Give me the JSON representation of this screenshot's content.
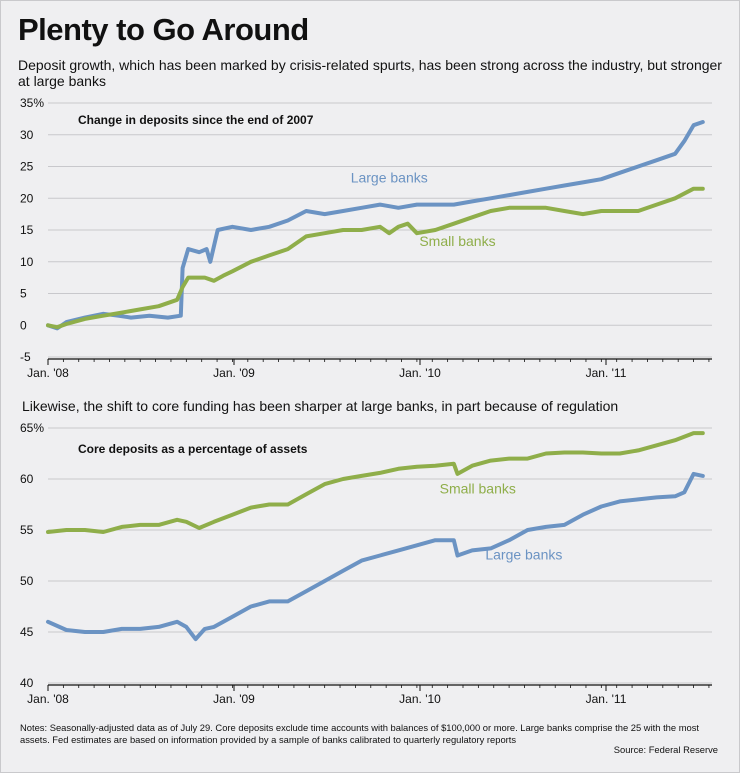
{
  "title": "Plenty to Go Around",
  "subtitle": "Deposit growth, which has been marked by crisis-related spurts, has been strong across the industry, but stronger at large banks",
  "mid_subtitle": "Likewise, the shift to core funding has been sharper at large banks, in part because of regulation",
  "notes": "Notes: Seasonally-adjusted data as of July 29. Core deposits exclude time accounts with balances of $100,000 or more. Large banks comprise the 25 with the most assets. Fed estimates are based on information provided by a sample of banks calibrated to quarterly regulatory reports",
  "source": "Source: Federal Reserve",
  "colors": {
    "large": "#6b93c3",
    "small": "#8fae4a"
  },
  "chart_data": [
    {
      "type": "line",
      "title": "Change in deposits since the end of 2007",
      "x_ticks": [
        "Jan. '08",
        "Jan. '09",
        "Jan. '10",
        "Jan. '11"
      ],
      "y_ticks": [
        "35%",
        "30",
        "25",
        "20",
        "15",
        "10",
        "5",
        "0",
        "-5"
      ],
      "ylim": [
        -5,
        35
      ],
      "xlim": [
        2008.0,
        2011.6
      ],
      "series": [
        {
          "name": "Large banks",
          "key": "large",
          "label_at": [
            2009.85,
            22.5
          ],
          "points": [
            [
              2008.0,
              0
            ],
            [
              2008.05,
              -0.5
            ],
            [
              2008.1,
              0.5
            ],
            [
              2008.2,
              1.2
            ],
            [
              2008.3,
              1.8
            ],
            [
              2008.38,
              1.5
            ],
            [
              2008.45,
              1.2
            ],
            [
              2008.55,
              1.5
            ],
            [
              2008.65,
              1.2
            ],
            [
              2008.72,
              1.5
            ],
            [
              2008.73,
              9
            ],
            [
              2008.76,
              12
            ],
            [
              2008.82,
              11.5
            ],
            [
              2008.86,
              12
            ],
            [
              2008.88,
              10
            ],
            [
              2008.92,
              15
            ],
            [
              2009.0,
              15.5
            ],
            [
              2009.1,
              15
            ],
            [
              2009.2,
              15.5
            ],
            [
              2009.3,
              16.5
            ],
            [
              2009.4,
              18
            ],
            [
              2009.5,
              17.5
            ],
            [
              2009.6,
              18
            ],
            [
              2009.7,
              18.5
            ],
            [
              2009.8,
              19
            ],
            [
              2009.9,
              18.5
            ],
            [
              2010.0,
              19
            ],
            [
              2010.1,
              19
            ],
            [
              2010.2,
              19
            ],
            [
              2010.3,
              19.5
            ],
            [
              2010.4,
              20
            ],
            [
              2010.5,
              20.5
            ],
            [
              2010.6,
              21
            ],
            [
              2010.7,
              21.5
            ],
            [
              2010.8,
              22
            ],
            [
              2010.9,
              22.5
            ],
            [
              2011.0,
              23
            ],
            [
              2011.1,
              24
            ],
            [
              2011.2,
              25
            ],
            [
              2011.3,
              26
            ],
            [
              2011.4,
              27
            ],
            [
              2011.45,
              29
            ],
            [
              2011.5,
              31.5
            ],
            [
              2011.55,
              32
            ]
          ]
        },
        {
          "name": "Small banks",
          "key": "small",
          "label_at": [
            2010.22,
            12.5
          ],
          "points": [
            [
              2008.0,
              0
            ],
            [
              2008.05,
              -0.3
            ],
            [
              2008.1,
              0.2
            ],
            [
              2008.2,
              1.0
            ],
            [
              2008.3,
              1.5
            ],
            [
              2008.4,
              2.0
            ],
            [
              2008.5,
              2.5
            ],
            [
              2008.6,
              3.0
            ],
            [
              2008.7,
              4.0
            ],
            [
              2008.73,
              6
            ],
            [
              2008.76,
              7.5
            ],
            [
              2008.85,
              7.5
            ],
            [
              2008.9,
              7
            ],
            [
              2008.95,
              7.8
            ],
            [
              2009.0,
              8.5
            ],
            [
              2009.1,
              10
            ],
            [
              2009.2,
              11
            ],
            [
              2009.3,
              12
            ],
            [
              2009.4,
              14
            ],
            [
              2009.5,
              14.5
            ],
            [
              2009.6,
              15
            ],
            [
              2009.7,
              15
            ],
            [
              2009.8,
              15.5
            ],
            [
              2009.85,
              14.5
            ],
            [
              2009.9,
              15.5
            ],
            [
              2009.95,
              16
            ],
            [
              2010.0,
              14.5
            ],
            [
              2010.1,
              15
            ],
            [
              2010.2,
              16
            ],
            [
              2010.3,
              17
            ],
            [
              2010.4,
              18
            ],
            [
              2010.5,
              18.5
            ],
            [
              2010.6,
              18.5
            ],
            [
              2010.7,
              18.5
            ],
            [
              2010.8,
              18
            ],
            [
              2010.9,
              17.5
            ],
            [
              2011.0,
              18
            ],
            [
              2011.1,
              18
            ],
            [
              2011.2,
              18
            ],
            [
              2011.3,
              19
            ],
            [
              2011.4,
              20
            ],
            [
              2011.5,
              21.5
            ],
            [
              2011.55,
              21.5
            ]
          ]
        }
      ]
    },
    {
      "type": "line",
      "title": "Core deposits as a percentage of assets",
      "x_ticks": [
        "Jan. '08",
        "Jan. '09",
        "Jan. '10",
        "Jan. '11"
      ],
      "y_ticks": [
        "65%",
        "60",
        "55",
        "50",
        "45",
        "40"
      ],
      "ylim": [
        40,
        65
      ],
      "xlim": [
        2008.0,
        2011.6
      ],
      "series": [
        {
          "name": "Small banks",
          "key": "small",
          "label_at": [
            2010.33,
            58.6
          ],
          "points": [
            [
              2008.0,
              54.8
            ],
            [
              2008.1,
              55
            ],
            [
              2008.2,
              55
            ],
            [
              2008.3,
              54.8
            ],
            [
              2008.4,
              55.3
            ],
            [
              2008.5,
              55.5
            ],
            [
              2008.6,
              55.5
            ],
            [
              2008.7,
              56
            ],
            [
              2008.75,
              55.8
            ],
            [
              2008.82,
              55.2
            ],
            [
              2008.9,
              55.8
            ],
            [
              2009.0,
              56.5
            ],
            [
              2009.1,
              57.2
            ],
            [
              2009.2,
              57.5
            ],
            [
              2009.3,
              57.5
            ],
            [
              2009.4,
              58.5
            ],
            [
              2009.5,
              59.5
            ],
            [
              2009.6,
              60
            ],
            [
              2009.7,
              60.3
            ],
            [
              2009.8,
              60.6
            ],
            [
              2009.9,
              61
            ],
            [
              2010.0,
              61.2
            ],
            [
              2010.1,
              61.3
            ],
            [
              2010.2,
              61.5
            ],
            [
              2010.22,
              60.5
            ],
            [
              2010.3,
              61.3
            ],
            [
              2010.4,
              61.8
            ],
            [
              2010.5,
              62
            ],
            [
              2010.6,
              62
            ],
            [
              2010.7,
              62.5
            ],
            [
              2010.8,
              62.6
            ],
            [
              2010.9,
              62.6
            ],
            [
              2011.0,
              62.5
            ],
            [
              2011.1,
              62.5
            ],
            [
              2011.2,
              62.8
            ],
            [
              2011.3,
              63.3
            ],
            [
              2011.4,
              63.8
            ],
            [
              2011.5,
              64.5
            ],
            [
              2011.55,
              64.5
            ]
          ]
        },
        {
          "name": "Large banks",
          "key": "large",
          "label_at": [
            2010.58,
            52.1
          ],
          "points": [
            [
              2008.0,
              46
            ],
            [
              2008.1,
              45.2
            ],
            [
              2008.2,
              45
            ],
            [
              2008.3,
              45
            ],
            [
              2008.4,
              45.3
            ],
            [
              2008.5,
              45.3
            ],
            [
              2008.6,
              45.5
            ],
            [
              2008.7,
              46
            ],
            [
              2008.75,
              45.5
            ],
            [
              2008.8,
              44.3
            ],
            [
              2008.85,
              45.3
            ],
            [
              2008.9,
              45.5
            ],
            [
              2009.0,
              46.5
            ],
            [
              2009.1,
              47.5
            ],
            [
              2009.2,
              48
            ],
            [
              2009.3,
              48
            ],
            [
              2009.4,
              49
            ],
            [
              2009.5,
              50
            ],
            [
              2009.6,
              51
            ],
            [
              2009.7,
              52
            ],
            [
              2009.8,
              52.5
            ],
            [
              2009.9,
              53
            ],
            [
              2010.0,
              53.5
            ],
            [
              2010.1,
              54
            ],
            [
              2010.2,
              54
            ],
            [
              2010.22,
              52.5
            ],
            [
              2010.3,
              53
            ],
            [
              2010.4,
              53.2
            ],
            [
              2010.5,
              54
            ],
            [
              2010.6,
              55
            ],
            [
              2010.7,
              55.3
            ],
            [
              2010.8,
              55.5
            ],
            [
              2010.9,
              56.5
            ],
            [
              2011.0,
              57.3
            ],
            [
              2011.1,
              57.8
            ],
            [
              2011.2,
              58
            ],
            [
              2011.3,
              58.2
            ],
            [
              2011.4,
              58.3
            ],
            [
              2011.45,
              58.7
            ],
            [
              2011.5,
              60.5
            ],
            [
              2011.55,
              60.3
            ]
          ]
        }
      ]
    }
  ]
}
